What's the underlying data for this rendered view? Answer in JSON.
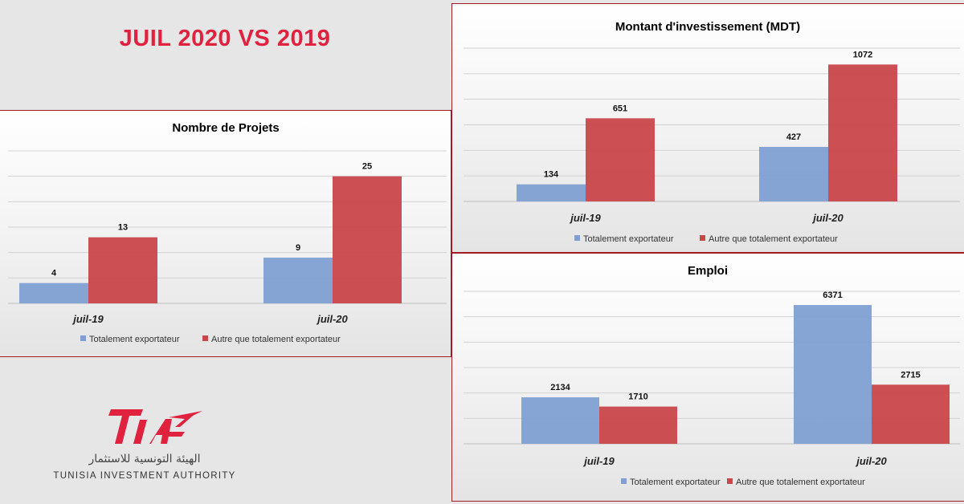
{
  "page": {
    "title": "JUIL 2020 VS 2019"
  },
  "logo": {
    "mark_text": "TIA",
    "arabic_name": "الهيئة التونسية للاستثمار",
    "english_name": "TUNISIA INVESTMENT AUTHORITY",
    "brand_color": "#e0223f"
  },
  "colors": {
    "series_blue": "#7f9fd2",
    "series_red": "#c9474a",
    "accent": "#e0223f"
  },
  "chart_data": [
    {
      "id": "projets",
      "type": "bar",
      "title": "Nombre de Projets",
      "categories": [
        "juil-19",
        "juil-20"
      ],
      "series": [
        {
          "name": "Totalement exportateur",
          "values": [
            4,
            9
          ]
        },
        {
          "name": "Autre que totalement exportateur",
          "values": [
            13,
            25
          ]
        }
      ],
      "ylim": [
        0,
        30
      ],
      "grid": true,
      "legend": "bottom"
    },
    {
      "id": "montant",
      "type": "bar",
      "title": "Montant d'investissement (MDT)",
      "categories": [
        "juil-19",
        "juil-20"
      ],
      "series": [
        {
          "name": "Totalement exportateur",
          "values": [
            134,
            427
          ]
        },
        {
          "name": "Autre que totalement exportateur",
          "values": [
            651,
            1072
          ]
        }
      ],
      "ylim": [
        0,
        1200
      ],
      "grid": true,
      "legend": "bottom"
    },
    {
      "id": "emploi",
      "type": "bar",
      "title": "Emploi",
      "categories": [
        "juil-19",
        "juil-20"
      ],
      "series": [
        {
          "name": "Totalement exportateur",
          "values": [
            2134,
            6371
          ]
        },
        {
          "name": "Autre que totalement exportateur",
          "values": [
            1710,
            2715
          ]
        }
      ],
      "ylim": [
        0,
        7000
      ],
      "grid": true,
      "legend": "bottom"
    }
  ]
}
